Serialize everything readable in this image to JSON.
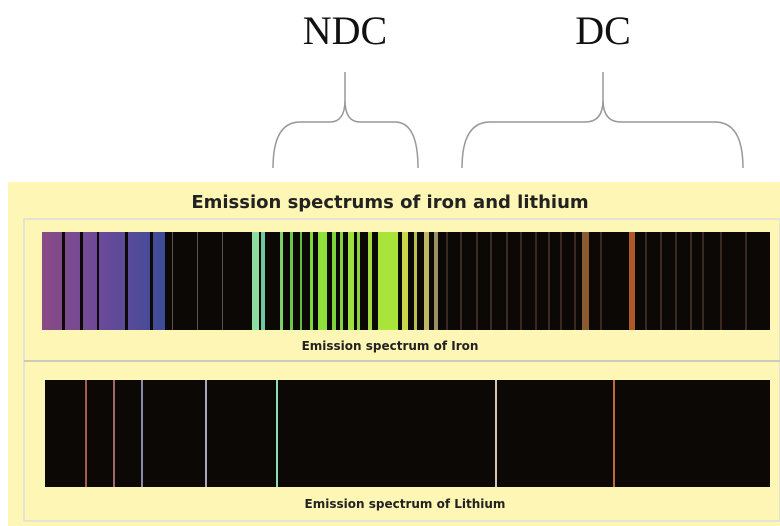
{
  "annotations": {
    "left_label": "NDC",
    "right_label": "DC"
  },
  "figure": {
    "title": "Emission spectrums of iron and lithium",
    "spectra": [
      {
        "caption": "Emission spectrum of Iron"
      },
      {
        "caption": "Emission spectrum of Lithium"
      }
    ]
  }
}
